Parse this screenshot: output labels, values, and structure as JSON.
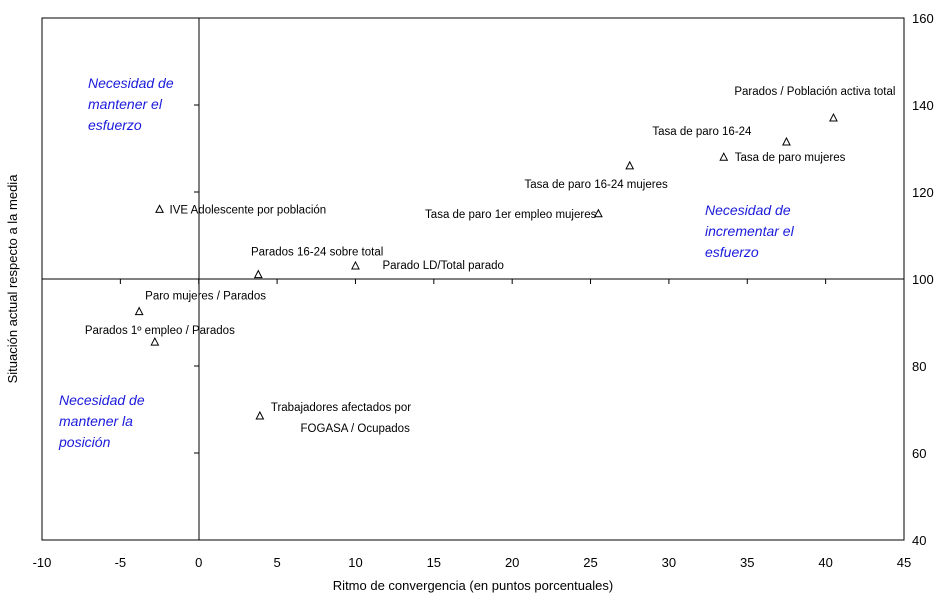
{
  "chart_data": {
    "type": "scatter",
    "xlabel": "Ritmo de convergencia (en puntos porcentuales)",
    "ylabel": "Situación actual respecto a la media",
    "xlim": [
      -10,
      45
    ],
    "ylim": [
      40,
      160
    ],
    "x_ticks": [
      -10,
      -5,
      0,
      5,
      10,
      15,
      20,
      25,
      30,
      35,
      40,
      45
    ],
    "y_ticks": [
      40,
      60,
      80,
      100,
      120,
      140,
      160
    ],
    "y_axis_side": "right",
    "grid": false,
    "marker": "triangle",
    "points": [
      {
        "label": "Parados / Población activa total",
        "x": 40.5,
        "y": 137
      },
      {
        "label": "Tasa de paro 16-24",
        "x": 37.5,
        "y": 131.5
      },
      {
        "label": "Tasa de paro mujeres",
        "x": 33.5,
        "y": 128
      },
      {
        "label": "Tasa de paro 16-24 mujeres",
        "x": 27.5,
        "y": 126
      },
      {
        "label": "Tasa de paro 1er empleo mujeres",
        "x": 25.5,
        "y": 115
      },
      {
        "label": "IVE Adolescente por población",
        "x": -2.5,
        "y": 116
      },
      {
        "label": "Parados 16-24 sobre total",
        "x": 3.8,
        "y": 101
      },
      {
        "label": "Parado LD/Total parado",
        "x": 10,
        "y": 103
      },
      {
        "label": "Paro mujeres / Parados",
        "x": -3.8,
        "y": 92.5
      },
      {
        "label": "Parados 1º empleo / Parados",
        "x": -2.8,
        "y": 85.5
      },
      {
        "label": "Trabajadores afectados por FOGASA / Ocupados",
        "x": 3.9,
        "y": 68.5
      }
    ],
    "annotations": [
      {
        "id": "mantener-esfuerzo",
        "lines": [
          "Necesidad de",
          "mantener el",
          "esfuerzo"
        ],
        "color": "#1a1adc"
      },
      {
        "id": "incrementar-esfuerzo",
        "lines": [
          "Necesidad de",
          "incrementar el",
          "esfuerzo"
        ],
        "color": "#1a1adc"
      },
      {
        "id": "mantener-posicion",
        "lines": [
          "Necesidad de",
          "mantener la",
          "posición"
        ],
        "color": "#1a1adc"
      }
    ]
  }
}
